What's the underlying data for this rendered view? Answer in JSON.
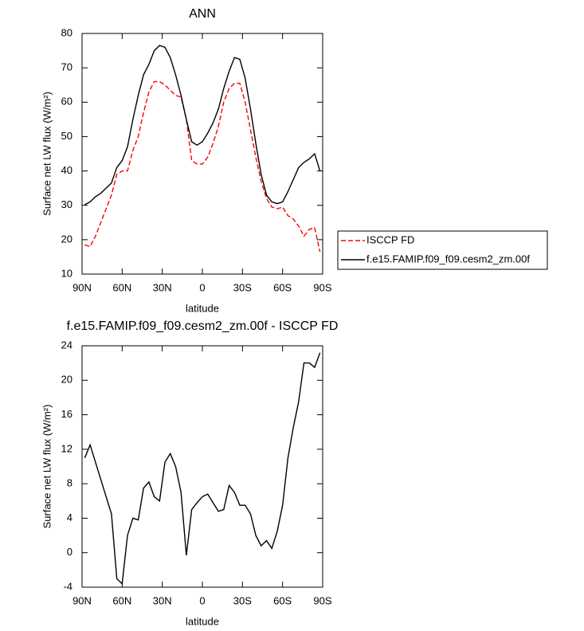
{
  "chart_data": [
    {
      "type": "line",
      "title": "ANN",
      "xlabel": "latitude",
      "ylabel": "Surface net LW flux (W/m²)",
      "x": [
        88,
        84,
        80,
        76,
        72,
        68,
        64,
        60,
        56,
        52,
        48,
        44,
        40,
        36,
        32,
        28,
        24,
        20,
        16,
        12,
        8,
        4,
        0,
        -4,
        -8,
        -12,
        -16,
        -20,
        -24,
        -28,
        -32,
        -36,
        -40,
        -44,
        -48,
        -52,
        -56,
        -60,
        -64,
        -68,
        -72,
        -76,
        -80,
        -84,
        -88
      ],
      "series": [
        {
          "name": "ISCCP FD",
          "color": "#ff0000",
          "style": "dashed",
          "values": [
            18.5,
            18,
            21,
            25,
            29,
            33,
            39,
            40,
            40,
            46,
            50,
            57,
            63,
            66,
            66,
            65,
            63.5,
            62,
            61.5,
            55,
            43,
            42,
            42,
            44,
            48,
            53,
            60,
            64,
            65.5,
            65.5,
            60,
            52,
            44,
            37,
            32,
            29.5,
            29,
            29.5,
            27,
            26,
            24,
            21,
            23,
            23.5,
            16.5
          ]
        },
        {
          "name": "f.e15.FAMIP.f09_f09.cesm2_zm.00f",
          "color": "#000000",
          "style": "solid",
          "values": [
            30.2,
            31,
            32.5,
            33.5,
            35,
            36.5,
            41,
            43,
            47,
            55,
            62,
            68,
            71,
            75,
            76.5,
            76,
            73,
            68,
            62,
            55,
            48.5,
            47.5,
            48.5,
            51,
            54,
            58,
            64,
            69,
            73,
            72.5,
            67,
            58,
            48,
            39,
            33,
            31,
            30.5,
            31,
            34,
            37.5,
            41,
            42.5,
            43.5,
            45,
            40
          ]
        }
      ],
      "xlim": [
        90,
        -90
      ],
      "xticks": [
        {
          "value": 90,
          "label": "90N"
        },
        {
          "value": 60,
          "label": "60N"
        },
        {
          "value": 30,
          "label": "30N"
        },
        0,
        {
          "value": -30,
          "label": "30S"
        },
        {
          "value": -60,
          "label": "60S"
        },
        {
          "value": -90,
          "label": "90S"
        }
      ],
      "ylim": [
        10,
        80
      ],
      "yticks": [
        10,
        20,
        30,
        40,
        50,
        60,
        70,
        80
      ],
      "legend": "outside-right"
    },
    {
      "type": "line",
      "title": "f.e15.FAMIP.f09_f09.cesm2_zm.00f - ISCCP FD",
      "xlabel": "latitude",
      "ylabel": "Surface net LW flux (W/m²)",
      "x": [
        88,
        84,
        80,
        76,
        72,
        68,
        64,
        60,
        56,
        52,
        48,
        44,
        40,
        36,
        32,
        28,
        24,
        20,
        16,
        12,
        8,
        4,
        0,
        -4,
        -8,
        -12,
        -16,
        -20,
        -24,
        -28,
        -32,
        -36,
        -40,
        -44,
        -48,
        -52,
        -56,
        -60,
        -64,
        -68,
        -72,
        -76,
        -80,
        -84,
        -88
      ],
      "values": [
        11,
        12.5,
        10.5,
        8.5,
        6.5,
        4.5,
        -3,
        -3.6,
        2,
        4,
        3.8,
        7.5,
        8.2,
        6.5,
        6,
        10.5,
        11.5,
        10,
        7,
        -0.3,
        5,
        5.8,
        6.5,
        6.8,
        5.8,
        4.8,
        5,
        7.8,
        7,
        5.5,
        5.5,
        4.5,
        2,
        0.8,
        1.4,
        0.5,
        2.5,
        5.5,
        11,
        14.5,
        17.5,
        22,
        22,
        21.5,
        23.2
      ],
      "color": "#000000",
      "xlim": [
        90,
        -90
      ],
      "xticks": [
        {
          "value": 90,
          "label": "90N"
        },
        {
          "value": 60,
          "label": "60N"
        },
        {
          "value": 30,
          "label": "30N"
        },
        0,
        {
          "value": -30,
          "label": "30S"
        },
        {
          "value": -60,
          "label": "60S"
        },
        {
          "value": -90,
          "label": "90S"
        }
      ],
      "ylim": [
        -4,
        24
      ],
      "yticks": [
        -4,
        0,
        4,
        8,
        12,
        16,
        20,
        24
      ]
    }
  ]
}
